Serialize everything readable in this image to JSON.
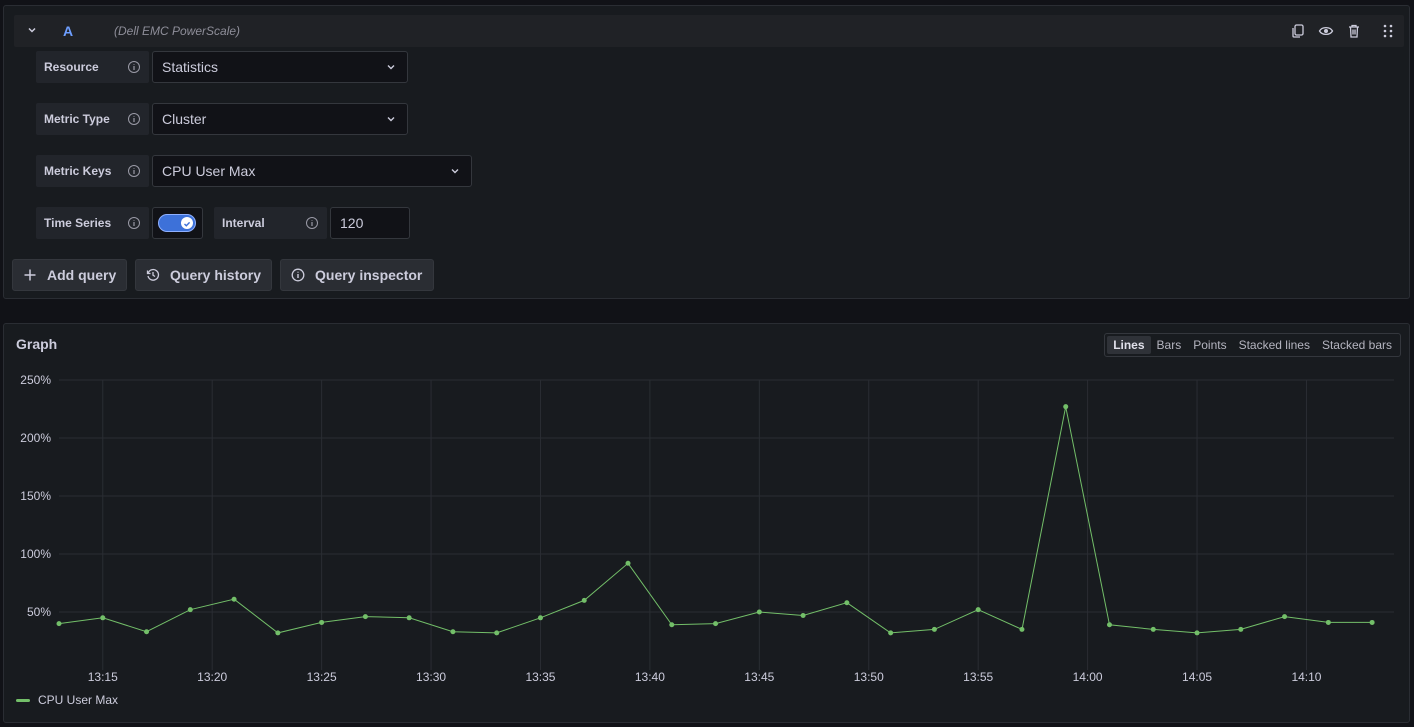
{
  "query": {
    "ref_id": "A",
    "datasource": "(Dell EMC PowerScale)",
    "fields": {
      "resource_label": "Resource",
      "resource_value": "Statistics",
      "metric_type_label": "Metric Type",
      "metric_type_value": "Cluster",
      "metric_keys_label": "Metric Keys",
      "metric_keys_value": "CPU User Max",
      "time_series_label": "Time Series",
      "time_series_enabled": true,
      "interval_label": "Interval",
      "interval_value": "120"
    },
    "header_icons": [
      "copy-icon",
      "eye-icon",
      "trash-icon",
      "drag-handle-icon"
    ]
  },
  "buttons": {
    "add_query": "Add query",
    "query_history": "Query history",
    "query_inspector": "Query inspector"
  },
  "graph": {
    "title": "Graph",
    "modes": [
      "Lines",
      "Bars",
      "Points",
      "Stacked lines",
      "Stacked bars"
    ],
    "active_mode": "Lines",
    "legend_label": "CPU User Max",
    "line_color": "#73bf69"
  },
  "chart_data": {
    "type": "line",
    "title": "Graph",
    "xlabel": "",
    "ylabel": "",
    "y_unit": "%",
    "ylim": [
      0,
      250
    ],
    "y_ticks": [
      "250%",
      "200%",
      "150%",
      "100%",
      "50%"
    ],
    "x_ticks": [
      "13:15",
      "13:20",
      "13:25",
      "13:30",
      "13:35",
      "13:40",
      "13:45",
      "13:50",
      "13:55",
      "14:00",
      "14:05",
      "14:10"
    ],
    "x_range": [
      "13:13",
      "14:14"
    ],
    "grid": true,
    "legend": "bottom-left",
    "series": [
      {
        "name": "CPU User Max",
        "color": "#73bf69",
        "x": [
          "13:13",
          "13:15",
          "13:17",
          "13:19",
          "13:21",
          "13:23",
          "13:25",
          "13:27",
          "13:29",
          "13:31",
          "13:33",
          "13:35",
          "13:37",
          "13:39",
          "13:41",
          "13:43",
          "13:45",
          "13:47",
          "13:49",
          "13:51",
          "13:53",
          "13:55",
          "13:57",
          "13:59",
          "14:01",
          "14:03",
          "14:05",
          "14:07",
          "14:09",
          "14:11",
          "14:13"
        ],
        "values": [
          40,
          45,
          33,
          52,
          61,
          32,
          41,
          46,
          45,
          33,
          32,
          45,
          60,
          92,
          39,
          40,
          50,
          47,
          58,
          32,
          35,
          52,
          35,
          227,
          39,
          35,
          32,
          35,
          46,
          41,
          41
        ]
      }
    ]
  }
}
